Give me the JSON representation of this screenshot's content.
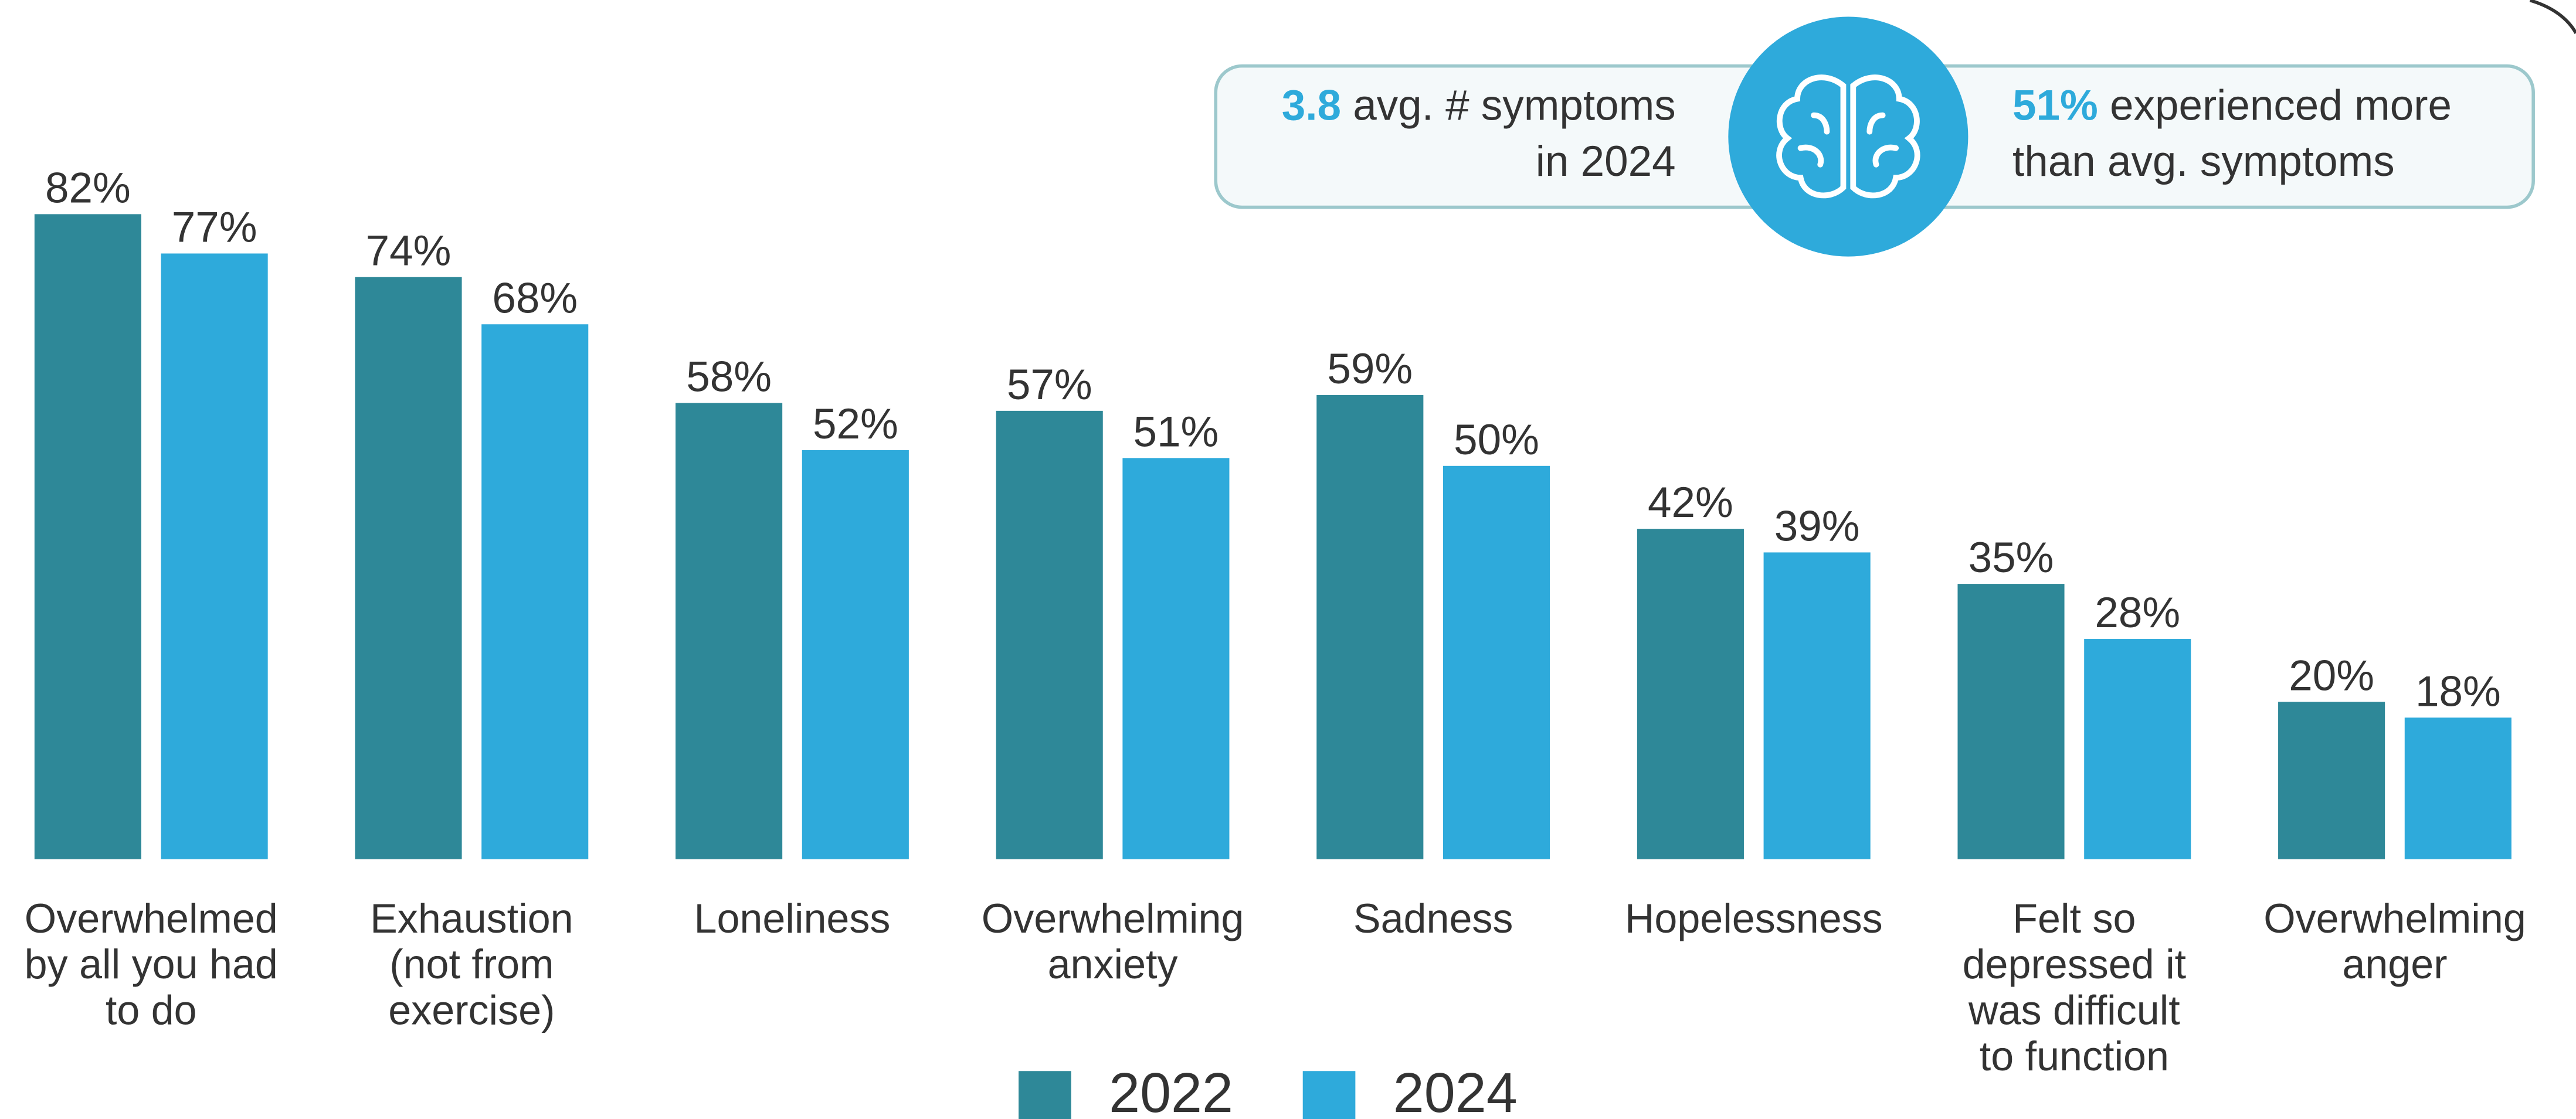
{
  "chart_data": {
    "type": "bar",
    "categories": [
      [
        "Overwhelmed",
        "by all you had",
        "to do"
      ],
      [
        "Exhaustion",
        "(not from",
        "exercise)"
      ],
      [
        "Loneliness"
      ],
      [
        "Overwhelming",
        "anxiety"
      ],
      [
        "Sadness"
      ],
      [
        "Hopelessness"
      ],
      [
        "Felt so",
        "depressed it",
        "was difficult",
        "to function"
      ],
      [
        "Overwhelming",
        "anger"
      ]
    ],
    "series": [
      {
        "name": "2022",
        "color": "#2e8898",
        "values": [
          82,
          74,
          58,
          57,
          59,
          42,
          35,
          20
        ],
        "value_labels": [
          "82%",
          "74%",
          "58%",
          "57%",
          "59%",
          "42%",
          "35%",
          "20%"
        ]
      },
      {
        "name": "2024",
        "color": "#2eaadb",
        "values": [
          77,
          68,
          52,
          51,
          50,
          39,
          28,
          18
        ],
        "value_labels": [
          "77%",
          "68%",
          "52%",
          "51%",
          "50%",
          "39%",
          "28%",
          "18%"
        ]
      }
    ],
    "ylim": [
      0,
      100
    ],
    "callouts": [
      {
        "highlight": "3.8",
        "lines": [
          "avg. # symptoms",
          "in 2024"
        ]
      },
      {
        "highlight": "51%",
        "lines": [
          "experienced more",
          "than avg. symptoms"
        ]
      }
    ]
  }
}
